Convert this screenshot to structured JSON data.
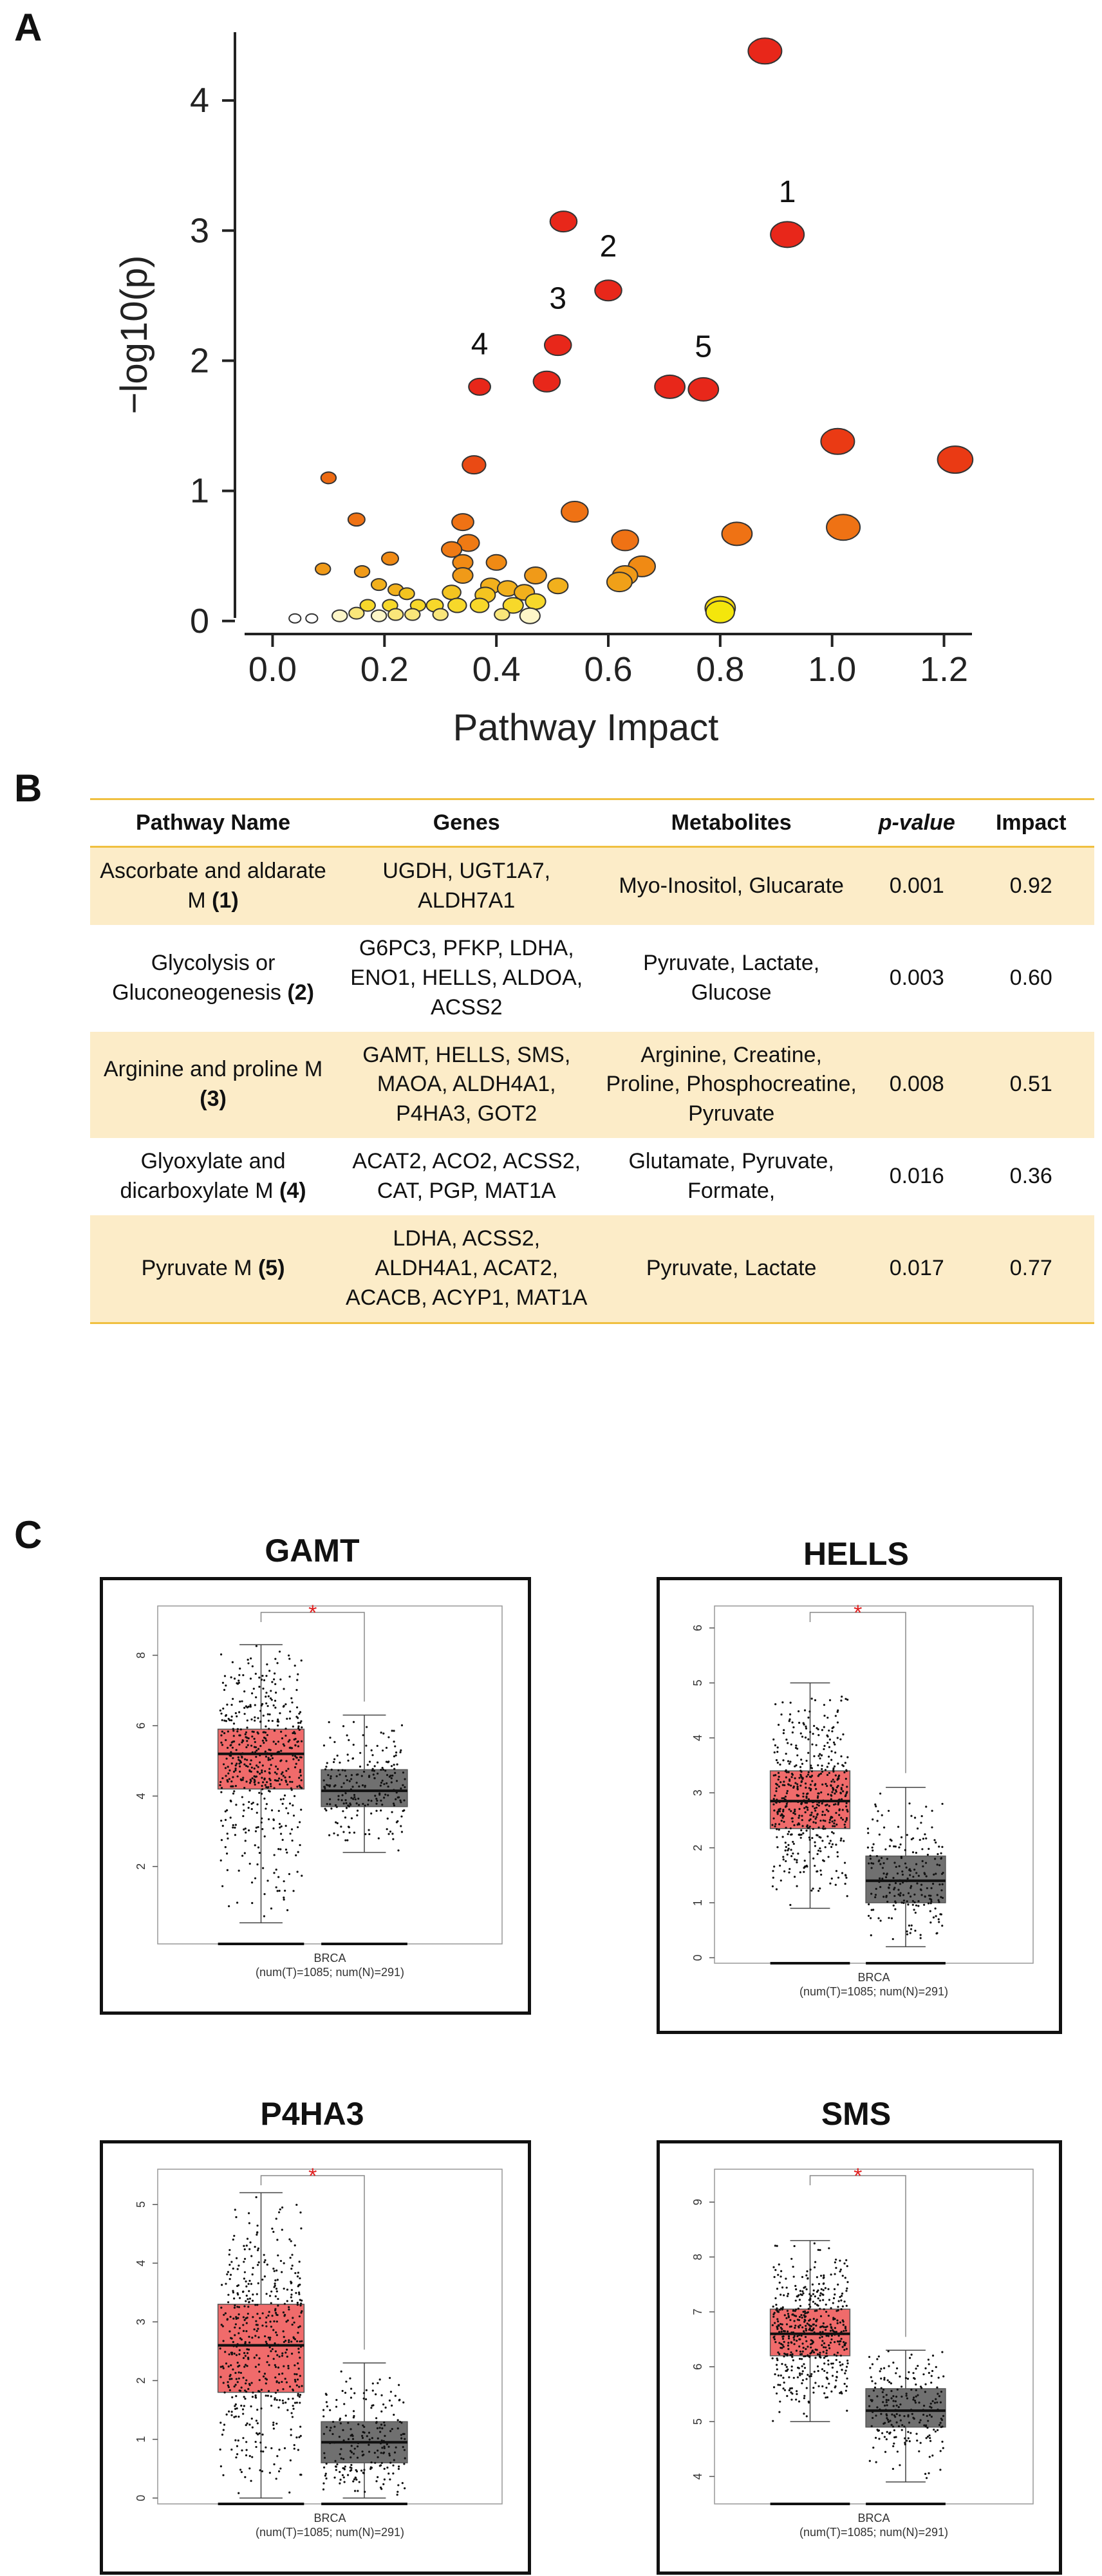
{
  "panels": {
    "a": "A",
    "b": "B",
    "c": "C"
  },
  "chart_data": [
    {
      "type": "scatter",
      "title": "",
      "xlabel": "Pathway Impact",
      "ylabel": "−log10(p)",
      "xlim": [
        -0.05,
        1.25
      ],
      "ylim": [
        -0.1,
        4.5
      ],
      "xticks": [
        "0.0",
        "0.2",
        "0.4",
        "0.6",
        "0.8",
        "1.0",
        "1.2"
      ],
      "yticks": [
        "0",
        "1",
        "2",
        "3",
        "4"
      ],
      "grid": false,
      "series": [
        {
          "points": [
            {
              "x": 0.88,
              "y": 4.38,
              "color": "#e8271a",
              "r": 1.0
            },
            {
              "x": 0.92,
              "y": 2.97,
              "color": "#e8271a",
              "r": 1.0
            },
            {
              "x": 0.52,
              "y": 3.07,
              "color": "#e8271a",
              "r": 0.8
            },
            {
              "x": 0.6,
              "y": 2.54,
              "color": "#e8271a",
              "r": 0.8
            },
            {
              "x": 0.51,
              "y": 2.12,
              "color": "#e8271a",
              "r": 0.8
            },
            {
              "x": 0.49,
              "y": 1.84,
              "color": "#e8271a",
              "r": 0.8
            },
            {
              "x": 0.37,
              "y": 1.8,
              "color": "#e8271a",
              "r": 0.65
            },
            {
              "x": 0.71,
              "y": 1.8,
              "color": "#e8271a",
              "r": 0.9
            },
            {
              "x": 0.77,
              "y": 1.78,
              "color": "#e8271a",
              "r": 0.9
            },
            {
              "x": 1.01,
              "y": 1.38,
              "color": "#ea3a14",
              "r": 1.0
            },
            {
              "x": 1.22,
              "y": 1.24,
              "color": "#ea3a14",
              "r": 1.05
            },
            {
              "x": 0.36,
              "y": 1.2,
              "color": "#ea4a14",
              "r": 0.7
            },
            {
              "x": 0.1,
              "y": 1.1,
              "color": "#ed6a12",
              "r": 0.45
            },
            {
              "x": 0.54,
              "y": 0.84,
              "color": "#ef7214",
              "r": 0.8
            },
            {
              "x": 0.15,
              "y": 0.78,
              "color": "#ef7214",
              "r": 0.5
            },
            {
              "x": 0.34,
              "y": 0.76,
              "color": "#ef7214",
              "r": 0.65
            },
            {
              "x": 1.02,
              "y": 0.72,
              "color": "#ef7214",
              "r": 1.0
            },
            {
              "x": 0.83,
              "y": 0.67,
              "color": "#ef7214",
              "r": 0.9
            },
            {
              "x": 0.63,
              "y": 0.62,
              "color": "#ef7214",
              "r": 0.8
            },
            {
              "x": 0.35,
              "y": 0.6,
              "color": "#ef7a14",
              "r": 0.65
            },
            {
              "x": 0.32,
              "y": 0.55,
              "color": "#ef7a14",
              "r": 0.6
            },
            {
              "x": 0.21,
              "y": 0.48,
              "color": "#f08a14",
              "r": 0.5
            },
            {
              "x": 0.34,
              "y": 0.45,
              "color": "#f08a14",
              "r": 0.6
            },
            {
              "x": 0.4,
              "y": 0.45,
              "color": "#f08a14",
              "r": 0.6
            },
            {
              "x": 0.66,
              "y": 0.42,
              "color": "#f08a14",
              "r": 0.8
            },
            {
              "x": 0.09,
              "y": 0.4,
              "color": "#f09a18",
              "r": 0.45
            },
            {
              "x": 0.63,
              "y": 0.35,
              "color": "#f09a18",
              "r": 0.75
            },
            {
              "x": 0.16,
              "y": 0.38,
              "color": "#f09a18",
              "r": 0.45
            },
            {
              "x": 0.34,
              "y": 0.35,
              "color": "#f09a18",
              "r": 0.6
            },
            {
              "x": 0.47,
              "y": 0.35,
              "color": "#f09a18",
              "r": 0.65
            },
            {
              "x": 0.62,
              "y": 0.3,
              "color": "#f0a018",
              "r": 0.75
            },
            {
              "x": 0.19,
              "y": 0.28,
              "color": "#f2b01c",
              "r": 0.45
            },
            {
              "x": 0.22,
              "y": 0.24,
              "color": "#f2b01c",
              "r": 0.45
            },
            {
              "x": 0.39,
              "y": 0.27,
              "color": "#f2b01c",
              "r": 0.6
            },
            {
              "x": 0.42,
              "y": 0.25,
              "color": "#f2b01c",
              "r": 0.6
            },
            {
              "x": 0.51,
              "y": 0.27,
              "color": "#f2b01c",
              "r": 0.6
            },
            {
              "x": 0.45,
              "y": 0.22,
              "color": "#f2b01c",
              "r": 0.6
            },
            {
              "x": 0.24,
              "y": 0.21,
              "color": "#f4c420",
              "r": 0.45
            },
            {
              "x": 0.32,
              "y": 0.22,
              "color": "#f4c420",
              "r": 0.55
            },
            {
              "x": 0.38,
              "y": 0.2,
              "color": "#f4c420",
              "r": 0.6
            },
            {
              "x": 0.17,
              "y": 0.12,
              "color": "#f7d82a",
              "r": 0.45
            },
            {
              "x": 0.21,
              "y": 0.12,
              "color": "#f7d82a",
              "r": 0.45
            },
            {
              "x": 0.26,
              "y": 0.12,
              "color": "#f7d82a",
              "r": 0.45
            },
            {
              "x": 0.29,
              "y": 0.12,
              "color": "#f7d82a",
              "r": 0.5
            },
            {
              "x": 0.33,
              "y": 0.12,
              "color": "#f7d82a",
              "r": 0.55
            },
            {
              "x": 0.37,
              "y": 0.12,
              "color": "#f7d82a",
              "r": 0.55
            },
            {
              "x": 0.43,
              "y": 0.12,
              "color": "#f7d82a",
              "r": 0.6
            },
            {
              "x": 0.47,
              "y": 0.15,
              "color": "#f7d82a",
              "r": 0.6
            },
            {
              "x": 0.8,
              "y": 0.1,
              "color": "#f4d80c",
              "r": 0.9
            },
            {
              "x": 0.8,
              "y": 0.07,
              "color": "#f4e60c",
              "r": 0.85
            },
            {
              "x": 0.15,
              "y": 0.06,
              "color": "#f9e67a",
              "r": 0.45
            },
            {
              "x": 0.22,
              "y": 0.05,
              "color": "#f9e67a",
              "r": 0.45
            },
            {
              "x": 0.25,
              "y": 0.05,
              "color": "#f9e67a",
              "r": 0.45
            },
            {
              "x": 0.3,
              "y": 0.05,
              "color": "#f9e67a",
              "r": 0.45
            },
            {
              "x": 0.41,
              "y": 0.05,
              "color": "#f9e67a",
              "r": 0.45
            },
            {
              "x": 0.12,
              "y": 0.04,
              "color": "#fdf6c8",
              "r": 0.45
            },
            {
              "x": 0.19,
              "y": 0.04,
              "color": "#fdf6c8",
              "r": 0.45
            },
            {
              "x": 0.46,
              "y": 0.04,
              "color": "#fdf6c8",
              "r": 0.6
            },
            {
              "x": 0.04,
              "y": 0.02,
              "color": "#ffffff",
              "r": 0.35
            },
            {
              "x": 0.07,
              "y": 0.02,
              "color": "#ffffff",
              "r": 0.35
            }
          ]
        }
      ],
      "annotations": [
        {
          "text": "1",
          "x": 0.92,
          "y": 3.22
        },
        {
          "text": "2",
          "x": 0.6,
          "y": 2.8
        },
        {
          "text": "3",
          "x": 0.51,
          "y": 2.4
        },
        {
          "text": "4",
          "x": 0.37,
          "y": 2.05
        },
        {
          "text": "5",
          "x": 0.77,
          "y": 2.03
        }
      ]
    },
    {
      "type": "table",
      "columns": [
        "Pathway Name",
        "Genes",
        "Metabolites",
        "p-value",
        "Impact"
      ],
      "rows": [
        {
          "name": "Ascorbate and aldarate M",
          "num": "(1)",
          "genes": "UGDH, UGT1A7, ALDH7A1",
          "metabolites": "Myo-Inositol, Glucarate",
          "p": "0.001",
          "impact": "0.92"
        },
        {
          "name": "Glycolysis or Gluconeogenesis",
          "num": "(2)",
          "genes": "G6PC3, PFKP, LDHA, ENO1, HELLS, ALDOA, ACSS2",
          "metabolites": "Pyruvate, Lactate, Glucose",
          "p": "0.003",
          "impact": "0.60"
        },
        {
          "name": "Arginine and proline M",
          "num": "(3)",
          "genes": "GAMT, HELLS, SMS, MAOA, ALDH4A1, P4HA3, GOT2",
          "metabolites": "Arginine, Creatine, Proline, Phosphocreatine, Pyruvate",
          "p": "0.008",
          "impact": "0.51"
        },
        {
          "name": "Glyoxylate and dicarboxylate M",
          "num": "(4)",
          "genes": "ACAT2, ACO2, ACSS2, CAT, PGP, MAT1A",
          "metabolites": "Glutamate, Pyruvate, Formate,",
          "p": "0.016",
          "impact": "0.36"
        },
        {
          "name": "Pyruvate M",
          "num": "(5)",
          "genes": "LDHA, ACSS2, ALDH4A1, ACAT2, ACACB, ACYP1, MAT1A",
          "metabolites": "Pyruvate, Lactate",
          "p": "0.017",
          "impact": "0.77"
        }
      ]
    },
    {
      "type": "box",
      "title": "GAMT",
      "category": "BRCA",
      "category_sub": "(num(T)=1085; num(N)=291)",
      "significance": "*",
      "yticks": [
        2,
        4,
        6,
        8
      ],
      "ylim": [
        -0.2,
        9.4
      ],
      "tumor": {
        "min": 0.4,
        "q1": 4.2,
        "median": 5.2,
        "q3": 5.9,
        "max": 8.3,
        "color": "#f06b6b"
      },
      "normal": {
        "min": 2.4,
        "q1": 3.7,
        "median": 4.15,
        "q3": 4.75,
        "max": 6.3,
        "color": "#707070"
      }
    },
    {
      "type": "box",
      "title": "HELLS",
      "category": "BRCA",
      "category_sub": "(num(T)=1085; num(N)=291)",
      "significance": "*",
      "yticks": [
        0,
        1,
        2,
        3,
        4,
        5,
        6
      ],
      "ylim": [
        -0.1,
        6.4
      ],
      "tumor": {
        "min": 0.9,
        "q1": 2.35,
        "median": 2.85,
        "q3": 3.4,
        "max": 5.0,
        "color": "#f06b6b"
      },
      "normal": {
        "min": 0.2,
        "q1": 1.0,
        "median": 1.4,
        "q3": 1.85,
        "max": 3.1,
        "color": "#707070"
      }
    },
    {
      "type": "box",
      "title": "P4HA3",
      "category": "BRCA",
      "category_sub": "(num(T)=1085; num(N)=291)",
      "significance": "*",
      "yticks": [
        0,
        1,
        2,
        3,
        4,
        5
      ],
      "ylim": [
        -0.1,
        5.6
      ],
      "tumor": {
        "min": 0.0,
        "q1": 1.8,
        "median": 2.6,
        "q3": 3.3,
        "max": 5.2,
        "color": "#f06b6b"
      },
      "normal": {
        "min": 0.0,
        "q1": 0.6,
        "median": 0.95,
        "q3": 1.3,
        "max": 2.3,
        "color": "#707070"
      }
    },
    {
      "type": "box",
      "title": "SMS",
      "category": "BRCA",
      "category_sub": "(num(T)=1085; num(N)=291)",
      "significance": "*",
      "yticks": [
        4,
        5,
        6,
        7,
        8,
        9
      ],
      "ylim": [
        3.5,
        9.6
      ],
      "tumor": {
        "min": 5.0,
        "q1": 6.2,
        "median": 6.6,
        "q3": 7.05,
        "max": 8.3,
        "color": "#f06b6b"
      },
      "normal": {
        "min": 3.9,
        "q1": 4.9,
        "median": 5.2,
        "q3": 5.6,
        "max": 6.3,
        "color": "#707070"
      }
    }
  ]
}
